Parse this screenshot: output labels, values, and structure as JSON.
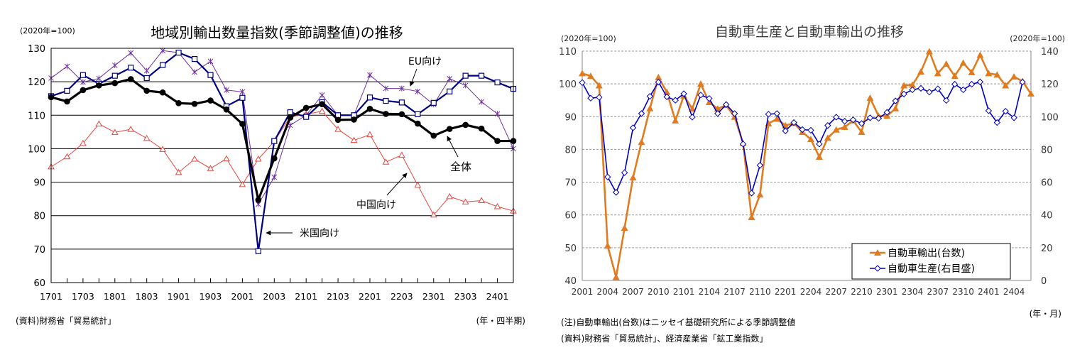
{
  "chart_data": [
    {
      "type": "line",
      "title": "地域別輸出数量指数(季節調整値)の推移",
      "unit_label": "(2020年=100)",
      "x_axis_label": "(年・四半期)",
      "source": "(資料)財務省「貿易統計」",
      "ylim": [
        60,
        130
      ],
      "yticks": [
        60,
        70,
        80,
        90,
        100,
        110,
        120,
        130
      ],
      "grid": true,
      "x": [
        "1701",
        "1702",
        "1703",
        "1704",
        "1801",
        "1802",
        "1803",
        "1804",
        "1901",
        "1902",
        "1903",
        "1904",
        "2001",
        "2002",
        "2003",
        "2004",
        "2101",
        "2102",
        "2103",
        "2104",
        "2201",
        "2202",
        "2203",
        "2204",
        "2301",
        "2302",
        "2303",
        "2304",
        "2401",
        "2402"
      ],
      "xtick_labels": [
        "1701",
        "1703",
        "1801",
        "1803",
        "1901",
        "1903",
        "2001",
        "2003",
        "2101",
        "2103",
        "2201",
        "2203",
        "2301",
        "2303",
        "2401"
      ],
      "series": [
        {
          "name": "全体",
          "color": "#000000",
          "marker": "circle",
          "values": [
            115.4,
            114.1,
            117.5,
            118.9,
            119.6,
            120.8,
            117.3,
            116.8,
            113.6,
            113.4,
            114.4,
            111.7,
            107.4,
            84.7,
            97.1,
            109.3,
            112.2,
            113.3,
            108.6,
            108.7,
            111.9,
            110.4,
            110.3,
            107.5,
            103.9,
            105.9,
            107.1,
            106.0,
            102.3,
            102.3
          ]
        },
        {
          "name": "米国向け",
          "color": "#000080",
          "marker": "square",
          "values": [
            115.7,
            117.3,
            122.0,
            119.4,
            121.8,
            124.2,
            121.1,
            125.0,
            128.7,
            126.8,
            122.0,
            112.7,
            115.2,
            69.4,
            102.3,
            110.9,
            109.5,
            113.9,
            110.0,
            110.0,
            115.3,
            114.3,
            113.8,
            110.3,
            113.7,
            117.1,
            121.8,
            121.8,
            119.8,
            117.9
          ]
        },
        {
          "name": "EU向け",
          "color": "#7030a0",
          "marker": "star",
          "values": [
            121.1,
            124.6,
            119.9,
            121.0,
            124.9,
            128.6,
            123.3,
            129.3,
            128.7,
            122.9,
            126.1,
            117.5,
            117.0,
            83.4,
            91.5,
            107.0,
            110.0,
            116.0,
            110.0,
            110.0,
            122.0,
            118.0,
            118.0,
            117.1,
            113.2,
            120.9,
            118.9,
            114.0,
            110.4,
            100.0
          ]
        },
        {
          "name": "中国向け",
          "color": "#e8453c",
          "marker": "triangle-open",
          "values": [
            94.6,
            97.6,
            101.6,
            107.4,
            104.9,
            105.8,
            103.1,
            99.8,
            92.9,
            96.9,
            94.1,
            97.0,
            89.3,
            96.9,
            102.2,
            109.5,
            110.3,
            111.2,
            105.8,
            102.5,
            104.2,
            96.0,
            98.1,
            89.1,
            80.2,
            85.7,
            84.1,
            84.5,
            82.7,
            81.4
          ]
        }
      ]
    },
    {
      "type": "line",
      "title": "自動車生産と自動車輸出の推移",
      "left_unit_label": "(2020年=100)",
      "right_unit_label": "(2020年=100)",
      "x_axis_label": "(年・月)",
      "note": "(注)自動車輸出(台数)はニッセイ基礎研究所による季節調整値",
      "source": "(資料)財務省「貿易統計」、経済産業省「鉱工業指数」",
      "ylim_left": [
        40,
        110
      ],
      "yticks_left": [
        40,
        50,
        60,
        70,
        80,
        90,
        100,
        110
      ],
      "ylim_right": [
        0,
        140
      ],
      "yticks_right": [
        0,
        20,
        40,
        60,
        80,
        100,
        120,
        140
      ],
      "grid": true,
      "legend_position": "bottom-right",
      "x_start": "2001",
      "x_end": "2406",
      "xtick_labels": [
        "2001",
        "2004",
        "2007",
        "2010",
        "2101",
        "2104",
        "2107",
        "2110",
        "2201",
        "2204",
        "2207",
        "2210",
        "2301",
        "2304",
        "2307",
        "2310",
        "2401",
        "2404"
      ],
      "series": [
        {
          "name": "自動車輸出(台数)",
          "axis": "left",
          "color": "#e07b20",
          "marker": "triangle",
          "values": [
            103.2,
            102.4,
            99.5,
            50.6,
            41.0,
            56.0,
            71.4,
            82.2,
            92.5,
            102.0,
            97.5,
            88.8,
            96.4,
            92.4,
            100.0,
            94.4,
            92.4,
            93.5,
            89.9,
            81.9,
            59.3,
            66.2,
            87.9,
            89.3,
            87.3,
            88.0,
            85.3,
            83.1,
            77.7,
            83.5,
            86.0,
            86.8,
            88.8,
            85.3,
            95.7,
            90.2,
            90.2,
            92.5,
            99.5,
            99.7,
            103.7,
            109.9,
            103.2,
            106.1,
            102.4,
            106.4,
            103.5,
            108.8,
            103.2,
            102.8,
            99.5,
            102.2,
            100.8,
            97.0
          ]
        },
        {
          "name": "自動車生産(右目盛)",
          "axis": "right",
          "color": "#0000c0",
          "marker": "diamond-open",
          "values": [
            120.8,
            111.3,
            111.8,
            63.2,
            53.8,
            65.8,
            93.2,
            101.9,
            112.4,
            121.1,
            112.1,
            110.0,
            114.0,
            99.7,
            113.2,
            111.1,
            101.9,
            107.4,
            101.9,
            83.3,
            53.3,
            70.3,
            101.5,
            101.9,
            91.3,
            96.4,
            92.1,
            91.7,
            83.3,
            94.6,
            99.7,
            97.2,
            98.1,
            95.8,
            99.3,
            99.0,
            102.6,
            109.6,
            113.8,
            116.4,
            117.3,
            115.0,
            117.0,
            109.9,
            119.8,
            116.4,
            119.8,
            121.2,
            103.6,
            96.4,
            103.3,
            99.3,
            121.1,
            null
          ]
        }
      ]
    }
  ],
  "annotations": {
    "eu": "EU向け",
    "total": "全体",
    "china": "中国向け",
    "us": "米国向け"
  }
}
